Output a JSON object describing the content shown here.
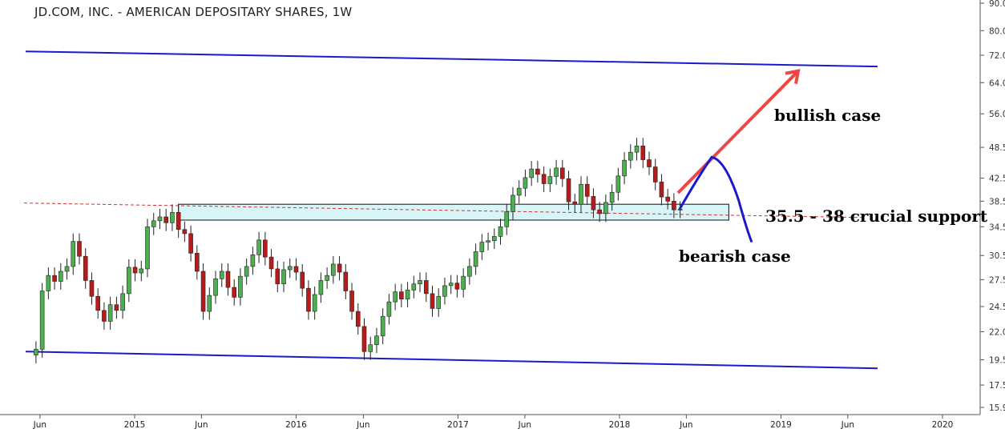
{
  "chart_data": {
    "type": "candlestick",
    "title": "JD.COM, INC. - AMERICAN DEPOSITARY SHARES, 1W",
    "y_scale": "log",
    "ylim": [
      15.9,
      90.0
    ],
    "y_ticks": [
      15.9,
      17.5,
      19.5,
      22.0,
      24.5,
      27.5,
      30.5,
      34.5,
      38.5,
      42.5,
      48.5,
      56.0,
      64.0,
      72.0,
      80.0,
      90.0
    ],
    "y_tick_labels": [
      "15.90",
      "17.50",
      "19.50",
      "22.00",
      "24.50",
      "27.50",
      "30.50",
      "34.50",
      "38.50",
      "42.50",
      "48.50",
      "56.00",
      "64.00",
      "72.00",
      "80.00",
      "90.00"
    ],
    "x_tick_labels": [
      "Jun",
      "2015",
      "Jun",
      "2016",
      "Jun",
      "2017",
      "Jun",
      "2018",
      "Jun",
      "2019",
      "Jun",
      "2020"
    ],
    "x_tick_dates": [
      "2014-06",
      "2015-01",
      "2015-06",
      "2016-01",
      "2016-06",
      "2017-01",
      "2017-06",
      "2018-01",
      "2018-06",
      "2019-01",
      "2019-06",
      "2020-01"
    ],
    "up_color": "#4caf50",
    "down_color": "#b71c1c",
    "series": [
      {
        "values": [
          20.4,
          26.2,
          28.0,
          27.3,
          28.5,
          29.1,
          32.4,
          30.4,
          27.4,
          25.6,
          24.1,
          23.0,
          24.7,
          24.1,
          25.9,
          29.0,
          28.3,
          28.8,
          34.5,
          35.4,
          36.0,
          35.1,
          36.7,
          34.1,
          33.5,
          30.8,
          28.5,
          24.0,
          25.7,
          27.6,
          28.5,
          26.6,
          25.5,
          27.9,
          29.1,
          30.6,
          32.6,
          30.3,
          28.8,
          27.0,
          28.7,
          29.1,
          28.4,
          26.5,
          24.0,
          25.8,
          27.4,
          28.0,
          29.4,
          28.4,
          26.2,
          24.0,
          22.5,
          20.2,
          20.8,
          21.6,
          23.5,
          25.0,
          26.1,
          25.3,
          26.3,
          27.0,
          27.4,
          25.9,
          24.3,
          25.6,
          26.8,
          27.1,
          26.4,
          27.9,
          29.1,
          31.0,
          32.3,
          32.5,
          33.1,
          34.5,
          36.8,
          39.5,
          40.7,
          42.6,
          44.2,
          43.2,
          41.5,
          42.8,
          44.4,
          42.4,
          38.4,
          38.0,
          41.4,
          39.3,
          37.1,
          36.5,
          38.3,
          40.0,
          42.9,
          45.9,
          47.5,
          48.8,
          46.0,
          44.6,
          41.8,
          39.2,
          38.5,
          37.1,
          37.2
        ],
        "opens": [
          19.9,
          20.4,
          26.2,
          28.0,
          27.3,
          28.5,
          29.1,
          32.4,
          30.4,
          27.4,
          25.6,
          24.1,
          23.0,
          24.7,
          24.1,
          25.9,
          29.0,
          28.3,
          28.8,
          34.5,
          35.4,
          36.0,
          35.1,
          36.7,
          34.1,
          33.5,
          30.8,
          28.5,
          24.0,
          25.7,
          27.6,
          28.5,
          26.6,
          25.5,
          27.9,
          29.1,
          30.6,
          32.6,
          30.3,
          28.8,
          27.0,
          28.7,
          29.1,
          28.4,
          26.5,
          24.0,
          25.8,
          27.4,
          28.0,
          29.4,
          28.4,
          26.2,
          24.0,
          22.5,
          20.2,
          20.8,
          21.6,
          23.5,
          25.0,
          26.1,
          25.3,
          26.3,
          27.0,
          27.4,
          25.9,
          24.3,
          25.6,
          26.8,
          27.1,
          26.4,
          27.9,
          29.1,
          31.0,
          32.3,
          32.5,
          33.1,
          34.5,
          36.8,
          39.5,
          40.7,
          42.6,
          44.2,
          43.2,
          41.5,
          42.8,
          44.4,
          42.4,
          38.4,
          38.0,
          41.4,
          39.3,
          37.1,
          36.5,
          38.3,
          40.0,
          42.9,
          45.9,
          47.5,
          48.8,
          46.0,
          44.6,
          41.8,
          39.2,
          38.5,
          37.1
        ],
        "dates_start": "2014-05-23",
        "interval_days": 7
      }
    ],
    "annotations": [
      "bullish case",
      "35.5 - 38 crucial support",
      "bearish case"
    ],
    "support_zone": [
      35.5,
      38.0
    ],
    "grid": false
  },
  "colors": {
    "channel": "#1a1acc",
    "bullish_arrow": "#f04545",
    "bearish_path": "#1a1acc",
    "support_fill": "#d8f6f8",
    "dashed_line": "#d32f2f"
  }
}
